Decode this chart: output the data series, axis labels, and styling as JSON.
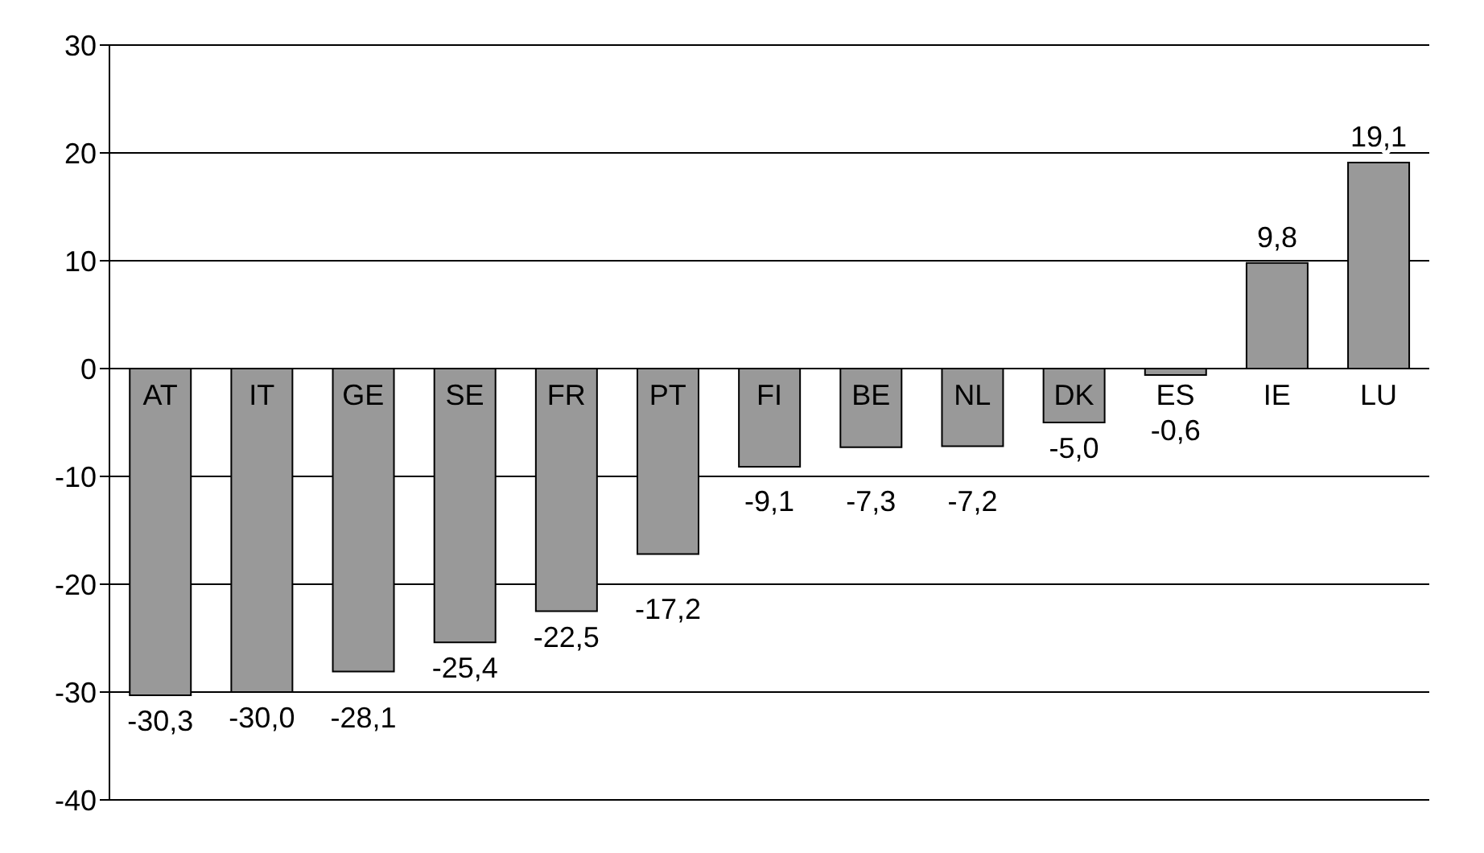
{
  "chart_data": {
    "type": "bar",
    "categories": [
      "AT",
      "IT",
      "GE",
      "SE",
      "FR",
      "PT",
      "FI",
      "BE",
      "NL",
      "DK",
      "ES",
      "IE",
      "LU"
    ],
    "values": [
      -30.3,
      -30.0,
      -28.1,
      -25.4,
      -22.5,
      -17.2,
      -9.1,
      -7.3,
      -7.2,
      -5.0,
      -0.6,
      9.8,
      19.1
    ],
    "value_labels": [
      "-30,3",
      "-30,0",
      "-28,1",
      "-25,4",
      "-22,5",
      "-17,2",
      "-9,1",
      "-7,3",
      "-7,2",
      "-5,0",
      "-0,6",
      "9,8",
      "19,1"
    ],
    "color": "#999999",
    "ylim": [
      -40,
      30
    ],
    "yticks": [
      -40,
      -30,
      -20,
      -10,
      0,
      10,
      20,
      30
    ],
    "grid": "y"
  }
}
